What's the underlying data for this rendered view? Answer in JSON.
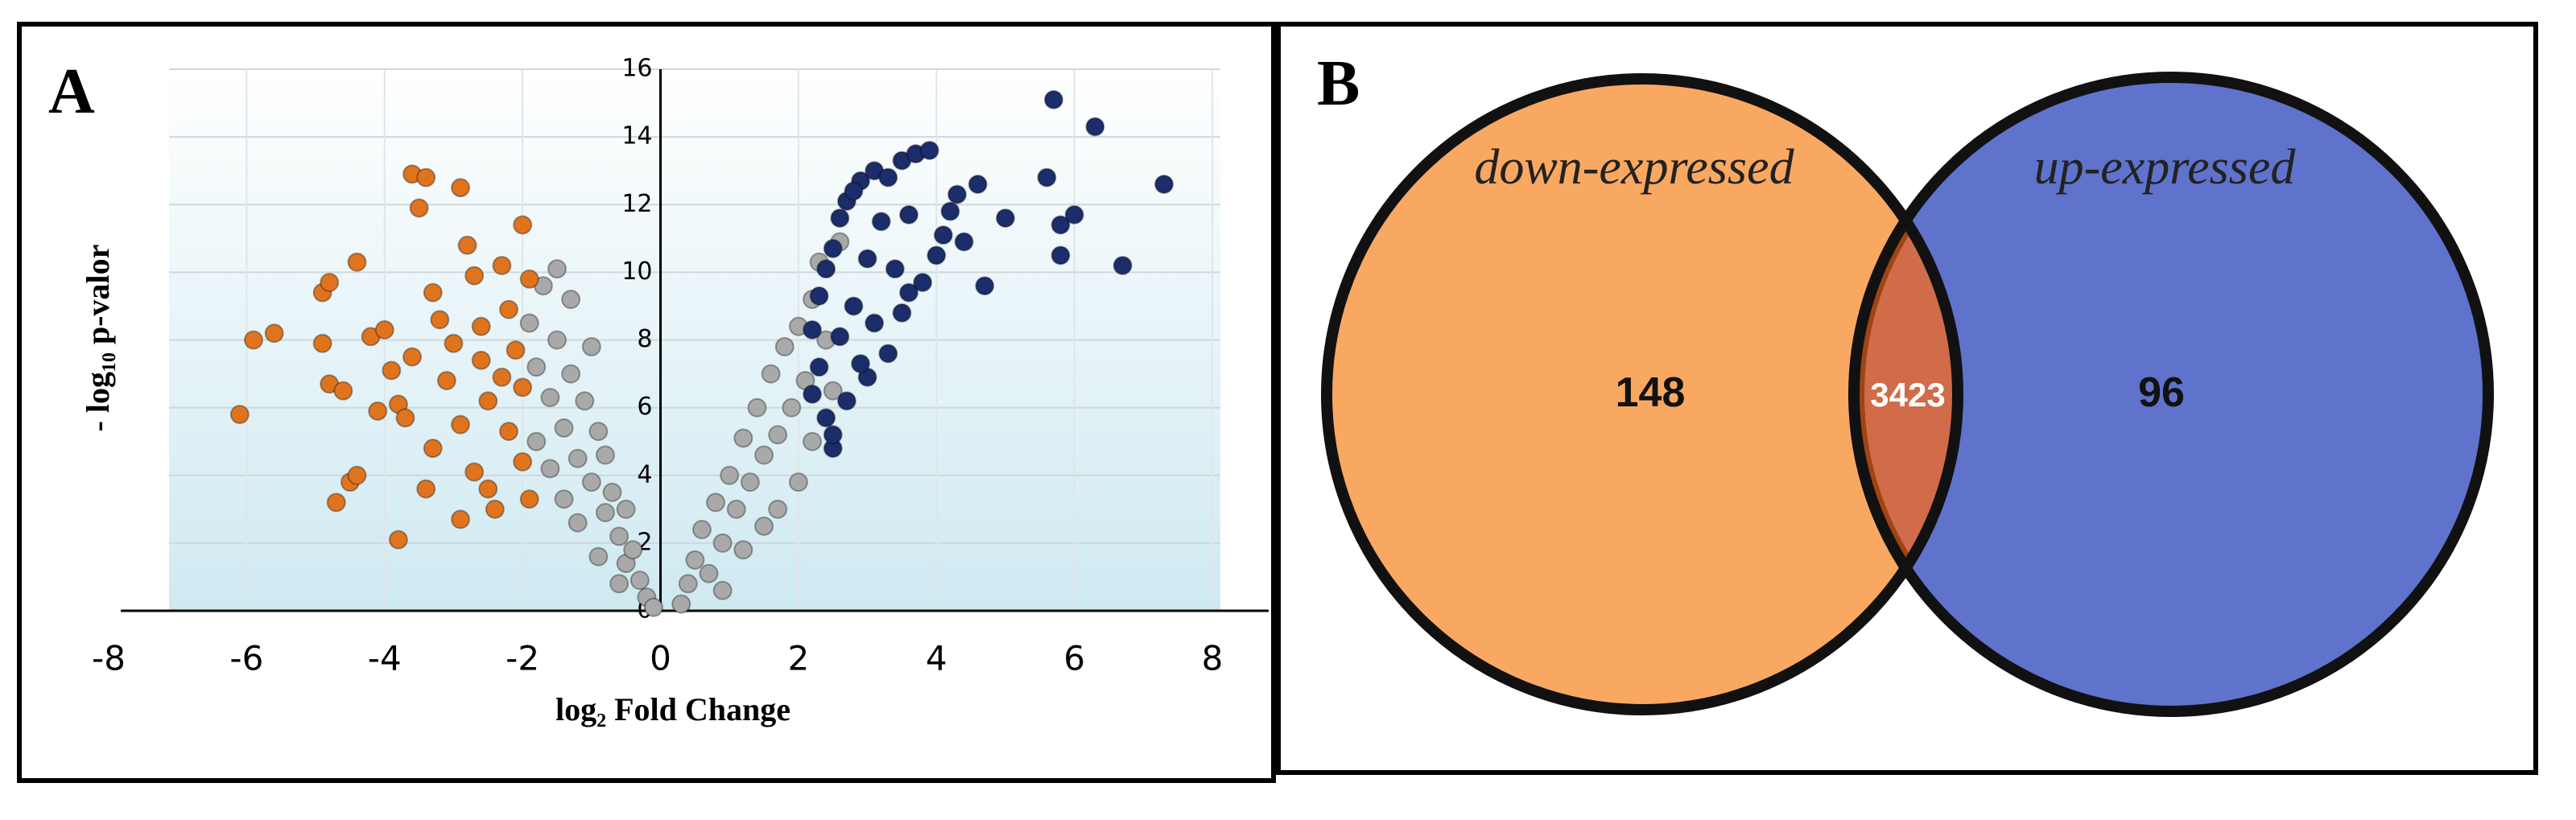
{
  "chart_data": [
    {
      "type": "scatter",
      "panel": "A",
      "xlabel": "log₂ Fold Change",
      "ylabel": "- log₁₀ p-valor",
      "xlim": [
        -8,
        8
      ],
      "ylim": [
        0,
        16
      ],
      "xticks": [
        -8,
        -6,
        -4,
        -2,
        0,
        2,
        4,
        6,
        8
      ],
      "yticks": [
        0,
        2,
        4,
        6,
        8,
        10,
        12,
        14,
        16
      ],
      "grid": true,
      "series": [
        {
          "color": "#a9a9a9",
          "x": [
            -1.9,
            -1.8,
            -1.7,
            -1.6,
            -1.5,
            -1.5,
            -1.4,
            -1.3,
            -1.3,
            -1.2,
            -1.1,
            -1.0,
            -1.0,
            -0.9,
            -0.8,
            -0.8,
            -0.7,
            -0.6,
            -0.5,
            -0.5,
            -0.4,
            -0.3,
            -0.2,
            -0.1,
            -1.6,
            -1.8,
            -1.2,
            -1.4,
            -0.9,
            -0.6,
            0.3,
            0.4,
            0.5,
            0.6,
            0.7,
            0.8,
            0.9,
            1.0,
            1.1,
            1.2,
            1.3,
            1.4,
            1.5,
            1.6,
            1.7,
            1.8,
            1.9,
            2.0,
            2.1,
            2.2,
            2.3,
            2.4,
            2.6,
            1.5,
            2.0,
            1.2,
            0.9,
            2.2,
            1.7,
            2.5
          ],
          "values": [
            8.5,
            7.2,
            9.6,
            6.3,
            10.1,
            8.0,
            5.4,
            7.0,
            9.2,
            4.5,
            6.2,
            3.8,
            7.8,
            5.3,
            2.9,
            4.6,
            3.5,
            2.2,
            3.0,
            1.4,
            1.8,
            0.9,
            0.4,
            0.1,
            4.2,
            5.0,
            2.6,
            3.3,
            1.6,
            0.8,
            0.2,
            0.8,
            1.5,
            2.4,
            1.1,
            3.2,
            2.0,
            4.0,
            3.0,
            5.1,
            3.8,
            6.0,
            4.6,
            7.0,
            5.2,
            7.8,
            6.0,
            8.4,
            6.8,
            9.2,
            10.3,
            8.0,
            10.9,
            2.5,
            3.8,
            1.8,
            0.6,
            5.0,
            3.0,
            6.5
          ]
        },
        {
          "color": "#e0741e",
          "x": [
            -6.1,
            -5.9,
            -5.6,
            -4.9,
            -4.8,
            -4.9,
            -4.8,
            -4.6,
            -4.4,
            -4.5,
            -4.4,
            -4.7,
            -4.2,
            -4.0,
            -3.9,
            -3.8,
            -3.7,
            -3.8,
            -3.6,
            -3.4,
            -3.5,
            -3.3,
            -3.2,
            -3.0,
            -3.1,
            -2.9,
            -2.8,
            -2.7,
            -2.6,
            -2.5,
            -2.9,
            -2.7,
            -2.5,
            -2.9,
            -2.3,
            -2.2,
            -2.1,
            -2.0,
            -2.2,
            -2.0,
            -1.9,
            -2.4,
            -3.4,
            -1.9,
            -2.0,
            -3.6,
            -4.1,
            -3.3,
            -2.6,
            -2.3
          ],
          "values": [
            5.8,
            8.0,
            8.2,
            9.4,
            9.7,
            7.9,
            6.7,
            6.5,
            10.3,
            3.8,
            4.0,
            3.2,
            8.1,
            8.3,
            7.1,
            6.1,
            5.7,
            2.1,
            12.9,
            12.8,
            11.9,
            9.4,
            8.6,
            7.9,
            6.8,
            12.5,
            10.8,
            9.9,
            7.4,
            6.2,
            5.5,
            4.1,
            3.6,
            2.7,
            10.2,
            8.9,
            7.7,
            6.6,
            5.3,
            4.4,
            3.3,
            3.0,
            3.6,
            9.8,
            11.4,
            7.5,
            5.9,
            4.8,
            8.4,
            6.9
          ]
        },
        {
          "color": "#1b2d6b",
          "x": [
            2.5,
            2.4,
            2.2,
            2.3,
            2.2,
            2.3,
            2.5,
            2.6,
            2.7,
            2.9,
            3.1,
            3.3,
            3.5,
            3.7,
            3.9,
            3.6,
            3.2,
            3.0,
            3.4,
            3.6,
            2.8,
            2.6,
            3.1,
            3.3,
            3.0,
            2.7,
            2.5,
            4.1,
            4.3,
            4.6,
            4.4,
            4.0,
            4.7,
            5.0,
            5.6,
            5.7,
            5.8,
            5.8,
            6.0,
            6.3,
            6.7,
            7.3,
            3.8,
            4.2,
            2.9,
            3.5,
            2.4,
            2.8
          ],
          "values": [
            4.8,
            5.7,
            6.4,
            7.2,
            8.3,
            9.3,
            10.7,
            11.6,
            12.1,
            12.7,
            13.0,
            12.8,
            13.3,
            13.5,
            13.6,
            11.7,
            11.5,
            10.4,
            10.1,
            9.4,
            9.0,
            8.1,
            8.5,
            7.6,
            6.9,
            6.2,
            5.2,
            11.1,
            12.3,
            12.6,
            10.9,
            10.5,
            9.6,
            11.6,
            12.8,
            15.1,
            11.4,
            10.5,
            11.7,
            14.3,
            10.2,
            12.6,
            9.7,
            11.8,
            7.3,
            8.8,
            10.1,
            12.4
          ]
        }
      ]
    },
    {
      "type": "venn",
      "panel": "B",
      "sets": [
        {
          "name": "down-expressed",
          "color": "#f9a862",
          "value": 148
        },
        {
          "name": "up-expressed",
          "color": "#5f73cc",
          "value": 96
        }
      ],
      "intersection": 3423,
      "intersection_color": "#d06c4a"
    }
  ]
}
